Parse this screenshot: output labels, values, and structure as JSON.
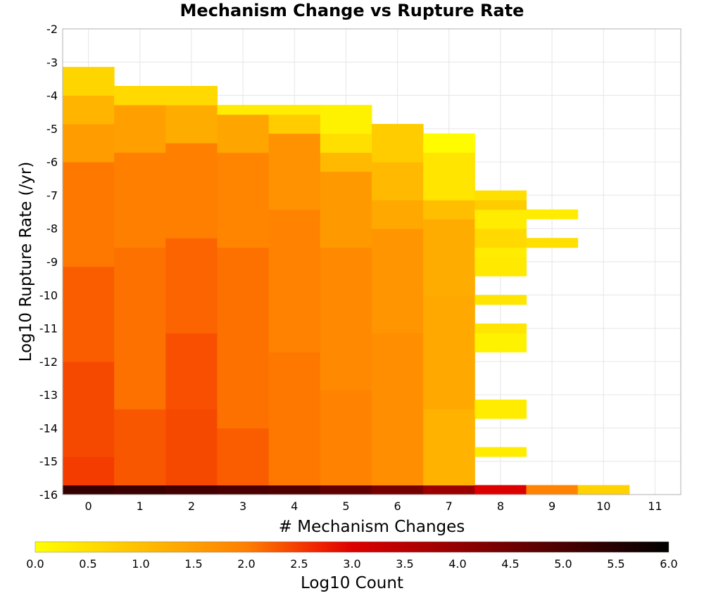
{
  "chart_data": {
    "type": "heatmap",
    "title": "Mechanism Change vs Rupture Rate",
    "xlabel": "# Mechanism Changes",
    "ylabel": "Log10 Rupture Rate (/yr)",
    "xlim": [
      -0.5,
      11.5
    ],
    "ylim": [
      -16,
      -2
    ],
    "x_ticks": [
      0,
      1,
      2,
      3,
      4,
      5,
      6,
      7,
      8,
      9,
      10,
      11
    ],
    "y_ticks": [
      -2,
      -3,
      -4,
      -5,
      -6,
      -7,
      -8,
      -9,
      -10,
      -11,
      -12,
      -13,
      -14,
      -15,
      -16
    ],
    "grid": true,
    "bin_height": 0.2857,
    "cells_note": "each column: ranges of bins [start_bin, end_bin, log10_count]; bin 0 is y=-16..-15.714",
    "columns": [
      {
        "x": 0,
        "ranges": [
          [
            0,
            0,
            5.3
          ],
          [
            1,
            3,
            2.5
          ],
          [
            4,
            13,
            2.4
          ],
          [
            14,
            23,
            2.25
          ],
          [
            24,
            34,
            2.05
          ],
          [
            35,
            38,
            1.55
          ],
          [
            39,
            41,
            1.15
          ],
          [
            42,
            44,
            0.65
          ]
        ]
      },
      {
        "x": 1,
        "ranges": [
          [
            0,
            0,
            5.2
          ],
          [
            1,
            8,
            2.3
          ],
          [
            9,
            25,
            2.1
          ],
          [
            26,
            35,
            2.0
          ],
          [
            36,
            40,
            1.5
          ],
          [
            41,
            42,
            0.6
          ]
        ]
      },
      {
        "x": 2,
        "ranges": [
          [
            0,
            0,
            5.1
          ],
          [
            1,
            8,
            2.4
          ],
          [
            9,
            16,
            2.35
          ],
          [
            17,
            26,
            2.2
          ],
          [
            27,
            36,
            2.0
          ],
          [
            37,
            40,
            1.3
          ],
          [
            41,
            42,
            0.6
          ]
        ]
      },
      {
        "x": 3,
        "ranges": [
          [
            0,
            0,
            5.0
          ],
          [
            1,
            6,
            2.25
          ],
          [
            7,
            25,
            2.1
          ],
          [
            26,
            35,
            1.9
          ],
          [
            36,
            39,
            1.4
          ],
          [
            40,
            40,
            0.3
          ]
        ]
      },
      {
        "x": 4,
        "ranges": [
          [
            0,
            0,
            4.9
          ],
          [
            1,
            14,
            2.05
          ],
          [
            15,
            29,
            1.95
          ],
          [
            30,
            37,
            1.7
          ],
          [
            38,
            39,
            0.8
          ],
          [
            40,
            40,
            0.3
          ]
        ]
      },
      {
        "x": 5,
        "ranges": [
          [
            0,
            0,
            4.7
          ],
          [
            1,
            10,
            1.95
          ],
          [
            11,
            25,
            1.85
          ],
          [
            26,
            33,
            1.6
          ],
          [
            34,
            35,
            1.1
          ],
          [
            36,
            37,
            0.5
          ],
          [
            38,
            40,
            0.2
          ]
        ]
      },
      {
        "x": 6,
        "ranges": [
          [
            0,
            0,
            4.4
          ],
          [
            1,
            16,
            1.75
          ],
          [
            17,
            27,
            1.65
          ],
          [
            28,
            30,
            1.35
          ],
          [
            31,
            34,
            1.1
          ],
          [
            35,
            38,
            0.8
          ]
        ]
      },
      {
        "x": 7,
        "ranges": [
          [
            0,
            0,
            3.9
          ],
          [
            1,
            8,
            1.2
          ],
          [
            9,
            20,
            1.35
          ],
          [
            21,
            28,
            1.3
          ],
          [
            29,
            30,
            1.0
          ],
          [
            31,
            35,
            0.4
          ],
          [
            36,
            37,
            0.05
          ]
        ]
      },
      {
        "x": 8,
        "ranges": [
          [
            0,
            0,
            3.0
          ],
          [
            4,
            4,
            0.3
          ],
          [
            8,
            9,
            0.3
          ],
          [
            15,
            16,
            0.2
          ],
          [
            17,
            17,
            0.4
          ],
          [
            20,
            20,
            0.4
          ],
          [
            23,
            24,
            0.35
          ],
          [
            25,
            25,
            0.3
          ],
          [
            26,
            27,
            0.6
          ],
          [
            28,
            29,
            0.3
          ],
          [
            30,
            30,
            0.8
          ],
          [
            31,
            31,
            0.5
          ]
        ]
      },
      {
        "x": 9,
        "ranges": [
          [
            0,
            0,
            1.95
          ],
          [
            26,
            26,
            0.5
          ],
          [
            29,
            29,
            0.3
          ]
        ]
      },
      {
        "x": 10,
        "ranges": [
          [
            0,
            0,
            0.7
          ]
        ]
      }
    ],
    "colorbar": {
      "label": "Log10 Count",
      "min": 0.0,
      "max": 6.0,
      "ticks": [
        "0.0",
        "0.5",
        "1.0",
        "1.5",
        "2.0",
        "2.5",
        "3.0",
        "3.5",
        "4.0",
        "4.5",
        "5.0",
        "5.5",
        "6.0"
      ],
      "stops": [
        {
          "value": 0.0,
          "color": "#ffff00"
        },
        {
          "value": 1.0,
          "color": "#ffbf00"
        },
        {
          "value": 2.0,
          "color": "#ff7f00"
        },
        {
          "value": 2.7,
          "color": "#f02000"
        },
        {
          "value": 3.0,
          "color": "#dd0000"
        },
        {
          "value": 4.0,
          "color": "#940000"
        },
        {
          "value": 5.0,
          "color": "#4a0000"
        },
        {
          "value": 6.0,
          "color": "#000000"
        }
      ]
    }
  }
}
